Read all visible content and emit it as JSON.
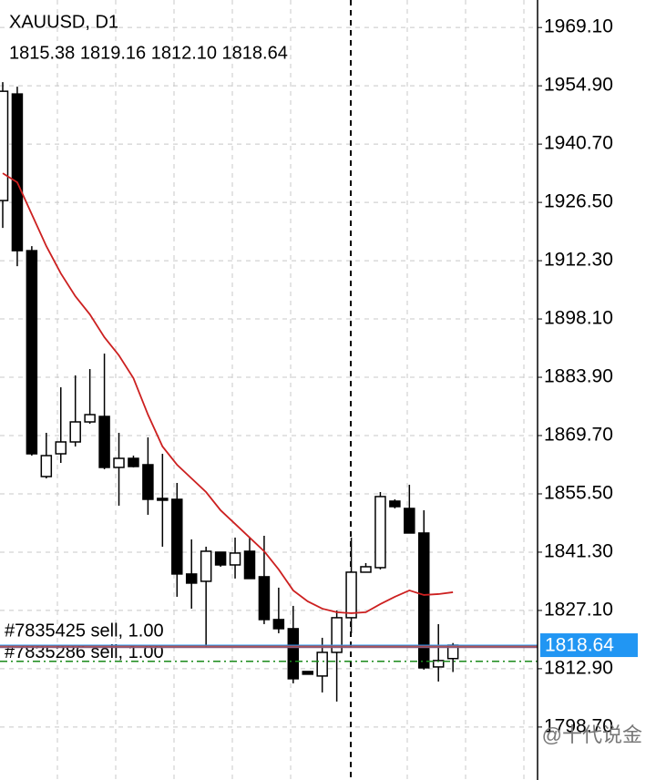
{
  "chart_data": {
    "type": "candlestick",
    "title": "XAUUSD, D1",
    "subtitle": "1815.38 1819.16 1812.10 1818.64",
    "categories": [
      null,
      null,
      null,
      null,
      null,
      null,
      null,
      null,
      null,
      null,
      null,
      null,
      null,
      null,
      null,
      null,
      null,
      null,
      null,
      null,
      null,
      null,
      null,
      null,
      null,
      null,
      null,
      null,
      null,
      null,
      null,
      null
    ],
    "open": [
      1926.95,
      1952.91,
      1914.74,
      1859.72,
      1865.26,
      1868.15,
      1873.03,
      1874.36,
      1861.94,
      1864.15,
      1862.6,
      1854.39,
      1854.17,
      1835.98,
      1834.2,
      1841.3,
      1838.19,
      1841.52,
      1835.31,
      1824.88,
      1822.66,
      1812.23,
      1811.13,
      1816.89,
      1825.33,
      1836.42,
      1837.53,
      1853.73,
      1851.95,
      1845.96,
      1813.34,
      1815.38
    ],
    "high": [
      1955.79,
      1954.68,
      1915.85,
      1870.37,
      1881.46,
      1884.35,
      1885.9,
      1889.67,
      1870.37,
      1864.82,
      1869.26,
      1865.26,
      1858.16,
      1844.41,
      1842.63,
      1841.3,
      1844.85,
      1844.85,
      1845.29,
      1832.65,
      1828.21,
      1812.23,
      1820.44,
      1827.1,
      1844.85,
      1838.64,
      1855.94,
      1854.17,
      1857.72,
      1851.51,
      1823.77,
      1819.16
    ],
    "low": [
      1920.29,
      1910.97,
      1864.82,
      1859.27,
      1863.04,
      1867.04,
      1872.59,
      1861.49,
      1852.62,
      1861.94,
      1850.4,
      1842.63,
      1830.43,
      1827.54,
      1818.23,
      1837.75,
      1834.87,
      1834.87,
      1823.77,
      1821.55,
      1809.35,
      1811.57,
      1807.13,
      1804.91,
      1821.55,
      1836.42,
      1837.08,
      1851.95,
      1845.96,
      1812.68,
      1809.79,
      1812.1
    ],
    "close": [
      1953.57,
      1914.74,
      1865.26,
      1864.82,
      1868.15,
      1873.03,
      1874.8,
      1861.94,
      1864.15,
      1862.16,
      1854.17,
      1853.95,
      1835.98,
      1833.76,
      1841.52,
      1838.19,
      1841.08,
      1834.87,
      1824.88,
      1822.66,
      1810.46,
      1811.57,
      1816.89,
      1825.33,
      1836.42,
      1837.75,
      1854.84,
      1852.39,
      1845.96,
      1813.12,
      1814.9,
      1818.64
    ],
    "up_color": "#ffffff",
    "down_color": "#000000",
    "moving_average": {
      "color": "#cc2020",
      "values": [
        1933.6,
        1931.38,
        1923.62,
        1915.85,
        1909.2,
        1903.65,
        1899.21,
        1893.66,
        1889.23,
        1883.68,
        1874.8,
        1867.04,
        1862.6,
        1859.27,
        1855.94,
        1851.51,
        1848.18,
        1844.85,
        1841.52,
        1837.08,
        1831.98,
        1829.32,
        1827.54,
        1826.66,
        1826.43,
        1826.66,
        1828.65,
        1830.43,
        1831.98,
        1830.87,
        1831.09,
        1831.54
      ]
    },
    "ylim": [
      1785.8,
      1975.8
    ],
    "yticks": [
      {
        "value": 1969.1,
        "label": "1969.10"
      },
      {
        "value": 1954.9,
        "label": "1954.90"
      },
      {
        "value": 1940.7,
        "label": "1940.70"
      },
      {
        "value": 1926.5,
        "label": "1926.50"
      },
      {
        "value": 1912.3,
        "label": "1912.30"
      },
      {
        "value": 1898.1,
        "label": "1898.10"
      },
      {
        "value": 1883.9,
        "label": "1883.90"
      },
      {
        "value": 1869.7,
        "label": "1869.70"
      },
      {
        "value": 1855.5,
        "label": "1855.50"
      },
      {
        "value": 1841.3,
        "label": "1841.30"
      },
      {
        "value": 1827.1,
        "label": "1827.10"
      },
      {
        "value": 1812.9,
        "label": "1812.90"
      },
      {
        "value": 1798.7,
        "label": "1798.70"
      }
    ],
    "grid": true,
    "current_price": 1818.64,
    "current_price_color": "#2196f3",
    "order_lines": [
      {
        "label": "#7835286 sell, 1.00",
        "price": 1818.1,
        "color": "#8a5a7a"
      },
      {
        "label": "#7835425 sell, 1.00",
        "price": 1818.4,
        "color": "#b04848"
      }
    ],
    "level_line": {
      "value": 1814.7,
      "color": "#1a8a1a"
    },
    "watermark": "@十代说金"
  }
}
